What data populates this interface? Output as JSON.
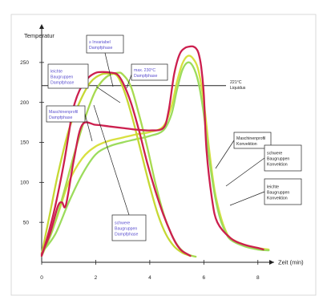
{
  "chart_data": {
    "type": "line",
    "ylabel": "Temperatur",
    "xlabel": "Zeit (min)",
    "xlim": [
      0,
      8.6
    ],
    "ylim": [
      0,
      290
    ],
    "x_ticks": [
      "0",
      "2",
      "4",
      "6",
      "8"
    ],
    "y_ticks": [
      "50",
      "100",
      "150",
      "200",
      "250"
    ],
    "reference_line": {
      "value": 221,
      "label": [
        "221°C",
        "Liquidus"
      ]
    },
    "series": [
      {
        "name": "Maschinenprofil Dampfphase",
        "color": "#cc1f4e",
        "x": [
          0,
          0.2,
          0.5,
          0.8,
          1.0,
          1.15,
          1.4,
          1.7,
          2.0,
          2.3,
          2.6,
          2.8,
          3.0,
          3.3,
          3.6,
          3.9,
          4.2,
          4.5,
          4.8,
          5.0,
          5.2,
          5.4,
          5.5
        ],
        "y": [
          8,
          30,
          70,
          120,
          160,
          190,
          215,
          230,
          237,
          238,
          237,
          235,
          225,
          200,
          165,
          125,
          90,
          60,
          35,
          22,
          14,
          10,
          8
        ]
      },
      {
        "name": "Maschinenprofil Konvektion",
        "color": "#cc1f4e",
        "x": [
          0,
          0.3,
          0.6,
          0.75,
          0.9,
          1.2,
          1.5,
          2.0,
          2.5,
          3.0,
          3.5,
          4.0,
          4.5,
          4.7,
          4.9,
          5.1,
          5.3,
          5.5,
          5.6,
          5.7,
          5.8,
          5.9,
          6.0,
          6.1,
          6.3,
          6.5,
          7.0,
          7.5,
          8.0,
          8.2
        ],
        "y": [
          10,
          35,
          70,
          75,
          72,
          130,
          172,
          172,
          170,
          168,
          166,
          165,
          168,
          190,
          235,
          260,
          268,
          270,
          270,
          268,
          262,
          245,
          210,
          140,
          80,
          50,
          30,
          22,
          18,
          16
        ]
      },
      {
        "name": "leichte Baugruppen Dampfphase",
        "color": "#c6d834",
        "x": [
          0,
          0.3,
          0.6,
          1.0,
          1.4,
          1.8,
          2.2,
          2.5,
          2.8,
          3.1,
          3.4,
          3.7,
          4.0,
          4.3,
          4.6,
          4.9,
          5.2,
          5.5
        ],
        "y": [
          10,
          60,
          110,
          165,
          200,
          225,
          235,
          236,
          233,
          210,
          175,
          135,
          95,
          60,
          35,
          20,
          12,
          8
        ]
      },
      {
        "name": "schwere Baugruppen Dampfphase",
        "color": "#a8da50",
        "x": [
          0,
          0.4,
          0.8,
          1.2,
          1.6,
          2.0,
          2.4,
          2.8,
          3.0,
          3.3,
          3.6,
          3.9,
          4.2,
          4.5,
          4.8,
          5.1,
          5.4,
          5.7
        ],
        "y": [
          8,
          40,
          85,
          135,
          180,
          215,
          232,
          237,
          235,
          220,
          185,
          145,
          100,
          62,
          35,
          18,
          10,
          7
        ]
      },
      {
        "name": "leichte Baugruppen Konvektion",
        "color": "#d8e040",
        "x": [
          0,
          0.5,
          1.0,
          1.5,
          2.0,
          2.5,
          3.0,
          3.5,
          4.0,
          4.5,
          4.8,
          5.0,
          5.2,
          5.4,
          5.6,
          5.8,
          6.0,
          6.2,
          6.4,
          6.6,
          6.8,
          7.0,
          7.5,
          8.0,
          8.4
        ],
        "y": [
          10,
          50,
          100,
          130,
          145,
          152,
          156,
          160,
          163,
          170,
          195,
          225,
          248,
          258,
          255,
          240,
          200,
          140,
          90,
          60,
          40,
          30,
          22,
          18,
          16
        ]
      },
      {
        "name": "schwere Baugruppen Konvektion",
        "color": "#9cdc5c",
        "x": [
          0,
          0.5,
          1.0,
          1.5,
          2.0,
          2.5,
          3.0,
          3.5,
          4.0,
          4.5,
          4.8,
          5.0,
          5.2,
          5.4,
          5.6,
          5.8,
          6.0,
          6.2,
          6.4,
          6.6,
          6.8,
          7.0,
          7.5,
          8.0,
          8.4
        ],
        "y": [
          12,
          35,
          75,
          110,
          135,
          145,
          150,
          154,
          158,
          165,
          185,
          215,
          240,
          250,
          245,
          225,
          185,
          130,
          85,
          55,
          38,
          28,
          20,
          16,
          15
        ]
      }
    ],
    "annotations": [
      {
        "lines": [
          "leichte",
          "Baugruppen",
          "Dampfphase"
        ],
        "color": "#5a4fcf"
      },
      {
        "lines": [
          "≥ Invariabel",
          "Dampfphase"
        ],
        "color": "#5a4fcf"
      },
      {
        "lines": [
          "max. 230°C",
          "Dampfphase"
        ],
        "color": "#5a4fcf"
      },
      {
        "lines": [
          "Maschinenprofil",
          "Dampfphase"
        ],
        "color": "#5a4fcf"
      },
      {
        "lines": [
          "schwere",
          "Baugruppen",
          "Dampfphase"
        ],
        "color": "#5a4fcf"
      },
      {
        "lines": [
          "Maschinenprofil",
          "Konvektion"
        ],
        "color": "#222222"
      },
      {
        "lines": [
          "schwere",
          "Baugruppen",
          "Konvektion"
        ],
        "color": "#222222"
      },
      {
        "lines": [
          "leichte",
          "Baugruppen",
          "Konvektion"
        ],
        "color": "#222222"
      }
    ]
  }
}
